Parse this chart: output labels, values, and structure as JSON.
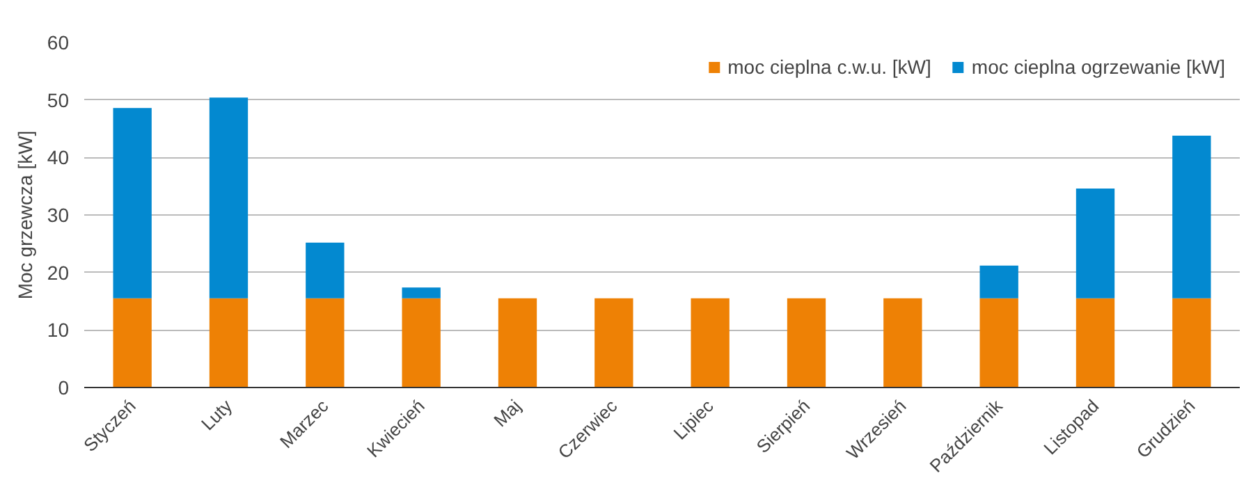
{
  "chart_data": {
    "type": "bar",
    "stacked": true,
    "ylabel": "Moc grzewcza [kW]",
    "categories": [
      "Styczeń",
      "Luty",
      "Marzec",
      "Kwiecień",
      "Maj",
      "Czerwiec",
      "Lipiec",
      "Sierpień",
      "Wrzesień",
      "Październik",
      "Listopad",
      "Grudzień"
    ],
    "series": [
      {
        "name": "moc cieplna c.w.u. [kW]",
        "color": "#ee8105",
        "values": [
          15.5,
          15.5,
          15.5,
          15.5,
          15.5,
          15.5,
          15.5,
          15.5,
          15.5,
          15.5,
          15.5,
          15.5
        ]
      },
      {
        "name": "moc cieplna ogrzewanie [kW]",
        "color": "#0389d0",
        "values": [
          33.1,
          34.9,
          9.7,
          1.9,
          null,
          null,
          null,
          null,
          null,
          5.7,
          19.1,
          28.3
        ]
      }
    ],
    "ylim": [
      0,
      60
    ],
    "yticks": [
      0,
      10,
      20,
      30,
      40,
      50,
      60
    ],
    "grid": "y",
    "legend": "top right"
  }
}
